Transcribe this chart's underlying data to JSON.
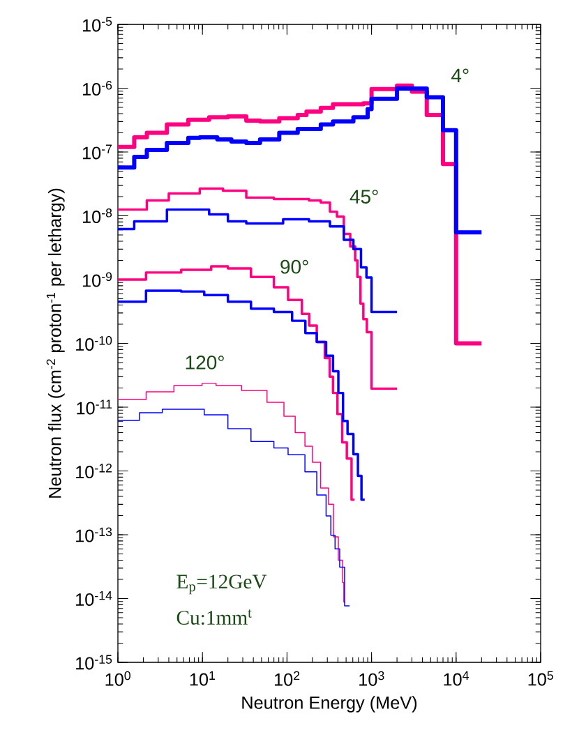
{
  "chart_data": {
    "type": "step",
    "xlabel": "Neutron Energy (MeV)",
    "ylabel": "Neutron flux (cm$^{-2}$ proton$^{-1}$ per lethargy)",
    "log": "xy",
    "xlim": [
      1,
      100000
    ],
    "ylim": [
      1e-15,
      1e-05
    ],
    "xticks": [
      {
        "value": 1,
        "label": "10$^{0}$"
      },
      {
        "value": 10,
        "label": "10$^{1}$"
      },
      {
        "value": 100,
        "label": "10$^{2}$"
      },
      {
        "value": 1000,
        "label": "10$^{3}$"
      },
      {
        "value": 10000,
        "label": "10$^{4}$"
      },
      {
        "value": 100000,
        "label": "10$^{5}$"
      }
    ],
    "yticks": [
      {
        "value": 1e-15,
        "label": "10$^{-15}$"
      },
      {
        "value": 1e-14,
        "label": "10$^{-14}$"
      },
      {
        "value": 1e-13,
        "label": "10$^{-13}$"
      },
      {
        "value": 1e-12,
        "label": "10$^{-12}$"
      },
      {
        "value": 1e-11,
        "label": "10$^{-11}$"
      },
      {
        "value": 1e-10,
        "label": "10$^{-10}$"
      },
      {
        "value": 1e-09,
        "label": "10$^{-9}$"
      },
      {
        "value": 1e-08,
        "label": "10$^{-8}$"
      },
      {
        "value": 1e-07,
        "label": "10$^{-7}$"
      },
      {
        "value": 1e-06,
        "label": "10$^{-6}$"
      },
      {
        "value": 1e-05,
        "label": "10$^{-5}$"
      }
    ],
    "series": [
      {
        "color": "#ff0080",
        "x": [
          1,
          1.56,
          2.2,
          3.8,
          6.8,
          12,
          20,
          33,
          48,
          81,
          134,
          170,
          251,
          350,
          800,
          1000,
          2000,
          3000,
          4500,
          7000,
          10000,
          20000
        ],
        "values": [
          1.2e-07,
          1.7e-07,
          2e-07,
          2.7e-07,
          3.2e-07,
          3.5e-07,
          3.6e-07,
          3.1e-07,
          3e-07,
          3.4e-07,
          3.8e-07,
          4.3e-07,
          4.9e-07,
          5.6e-07,
          5.8e-07,
          9.7e-07,
          1.1e-06,
          8.8e-07,
          3.8e-07,
          6.5e-08,
          1e-10,
          1e-10
        ]
      },
      {
        "color": "#0000ff",
        "x": [
          1,
          1.56,
          2.2,
          3.8,
          6.8,
          9.3,
          15,
          22,
          33,
          48,
          81,
          134,
          251,
          350,
          610,
          900,
          1000,
          2000,
          4500,
          7000,
          10000,
          20000
        ],
        "values": [
          5.7e-08,
          8.4e-08,
          1.08e-07,
          1.39e-07,
          1.66e-07,
          1.7e-07,
          1.57e-07,
          1.46e-07,
          1.39e-07,
          1.57e-07,
          2e-07,
          2.3e-07,
          2.7e-07,
          3e-07,
          3.5e-07,
          4.7e-07,
          6.8e-07,
          9.9e-07,
          7.2e-07,
          2.2e-07,
          5.5e-09,
          5.5e-09
        ]
      },
      {
        "color": "#ff0080",
        "x": [
          1,
          2.2,
          4,
          9.3,
          17.5,
          33,
          70,
          182,
          251,
          322,
          390,
          470,
          560,
          640,
          680,
          740,
          800,
          880,
          1000,
          2000
        ],
        "values": [
          1.25e-08,
          1.74e-08,
          2.24e-08,
          2.67e-08,
          2.48e-08,
          1.93e-08,
          1.83e-08,
          1.74e-08,
          1.61e-08,
          1.16e-08,
          9.7e-09,
          5.2e-09,
          3.3e-09,
          2e-09,
          1.1e-09,
          4.2e-10,
          2.4e-10,
          1.5e-10,
          1.95e-11,
          1.95e-11
        ]
      },
      {
        "color": "#0000ff",
        "x": [
          1,
          1.56,
          3.8,
          6.8,
          12,
          20,
          33,
          48,
          90,
          182,
          322,
          470,
          610,
          750,
          870,
          1000,
          2000
        ],
        "values": [
          6.2e-09,
          8.2e-09,
          1.25e-08,
          1.25e-08,
          1.05e-08,
          8.2e-09,
          7.6e-09,
          7.6e-09,
          8.8e-09,
          8.2e-09,
          6.8e-09,
          4.2e-09,
          3e-09,
          1.55e-09,
          1.08e-09,
          3.1e-10,
          3.1e-10
        ]
      },
      {
        "color": "#ff0080",
        "x": [
          1,
          2.15,
          5.6,
          12.7,
          20,
          37.5,
          70,
          103,
          150,
          183,
          225,
          280,
          320,
          350,
          395,
          450,
          510,
          580,
          630
        ],
        "values": [
          1e-09,
          1.29e-09,
          1.42e-09,
          1.61e-09,
          1.5e-09,
          1.1e-09,
          7.6e-10,
          4.8e-10,
          2.9e-10,
          1.9e-10,
          1.05e-10,
          5.9e-11,
          3e-11,
          1.67e-11,
          7.8e-12,
          2.8e-12,
          1.56e-12,
          3.55e-13,
          3.55e-13
        ]
      },
      {
        "color": "#0000ff",
        "x": [
          1,
          2.15,
          5.6,
          10.5,
          20,
          37.5,
          70,
          115,
          165,
          225,
          290,
          350,
          405,
          460,
          520,
          610,
          690,
          760,
          830
        ],
        "values": [
          4.5e-10,
          6.7e-10,
          6.5e-10,
          5.7e-10,
          4.5e-10,
          3.5e-10,
          3.1e-10,
          2.26e-10,
          1.45e-10,
          1.05e-10,
          6.4e-11,
          3.65e-11,
          1.67e-11,
          6.1e-12,
          3.8e-12,
          1.83e-12,
          8.4e-13,
          3.55e-13,
          3.55e-13
        ]
      },
      {
        "color": "#ff0080",
        "x": [
          1,
          2.16,
          4.6,
          9.9,
          14.5,
          29,
          58,
          92,
          125,
          163,
          200,
          250,
          310,
          355,
          405,
          455,
          470,
          490
        ],
        "values": [
          1.32e-11,
          1.74e-11,
          2.18e-11,
          2.36e-11,
          2.18e-11,
          1.83e-11,
          1.19e-11,
          7.2e-12,
          4e-12,
          2.44e-12,
          1.37e-12,
          5.4e-13,
          3e-13,
          9.3e-14,
          4e-14,
          1.78e-14,
          8.8e-15,
          8.8e-15
        ]
      },
      {
        "color": "#0000ff",
        "x": [
          1,
          1.8,
          3.35,
          5.6,
          10.5,
          20,
          37.5,
          70,
          103,
          163,
          225,
          290,
          330,
          370,
          420,
          480,
          550
        ],
        "values": [
          6.2e-12,
          8.2e-12,
          9.3e-12,
          9.3e-12,
          7.6e-12,
          4.6e-12,
          2.9e-12,
          2.3e-12,
          1.8e-12,
          9.7e-13,
          4.2e-13,
          1.97e-13,
          9.8e-14,
          6e-14,
          3.1e-14,
          7.7e-15,
          7.7e-15
        ]
      }
    ],
    "annotations": [
      "4°",
      "45°",
      "90°",
      "120°",
      "E$_{p}$=12GeV",
      "Cu:1mm$^{t}$"
    ]
  }
}
